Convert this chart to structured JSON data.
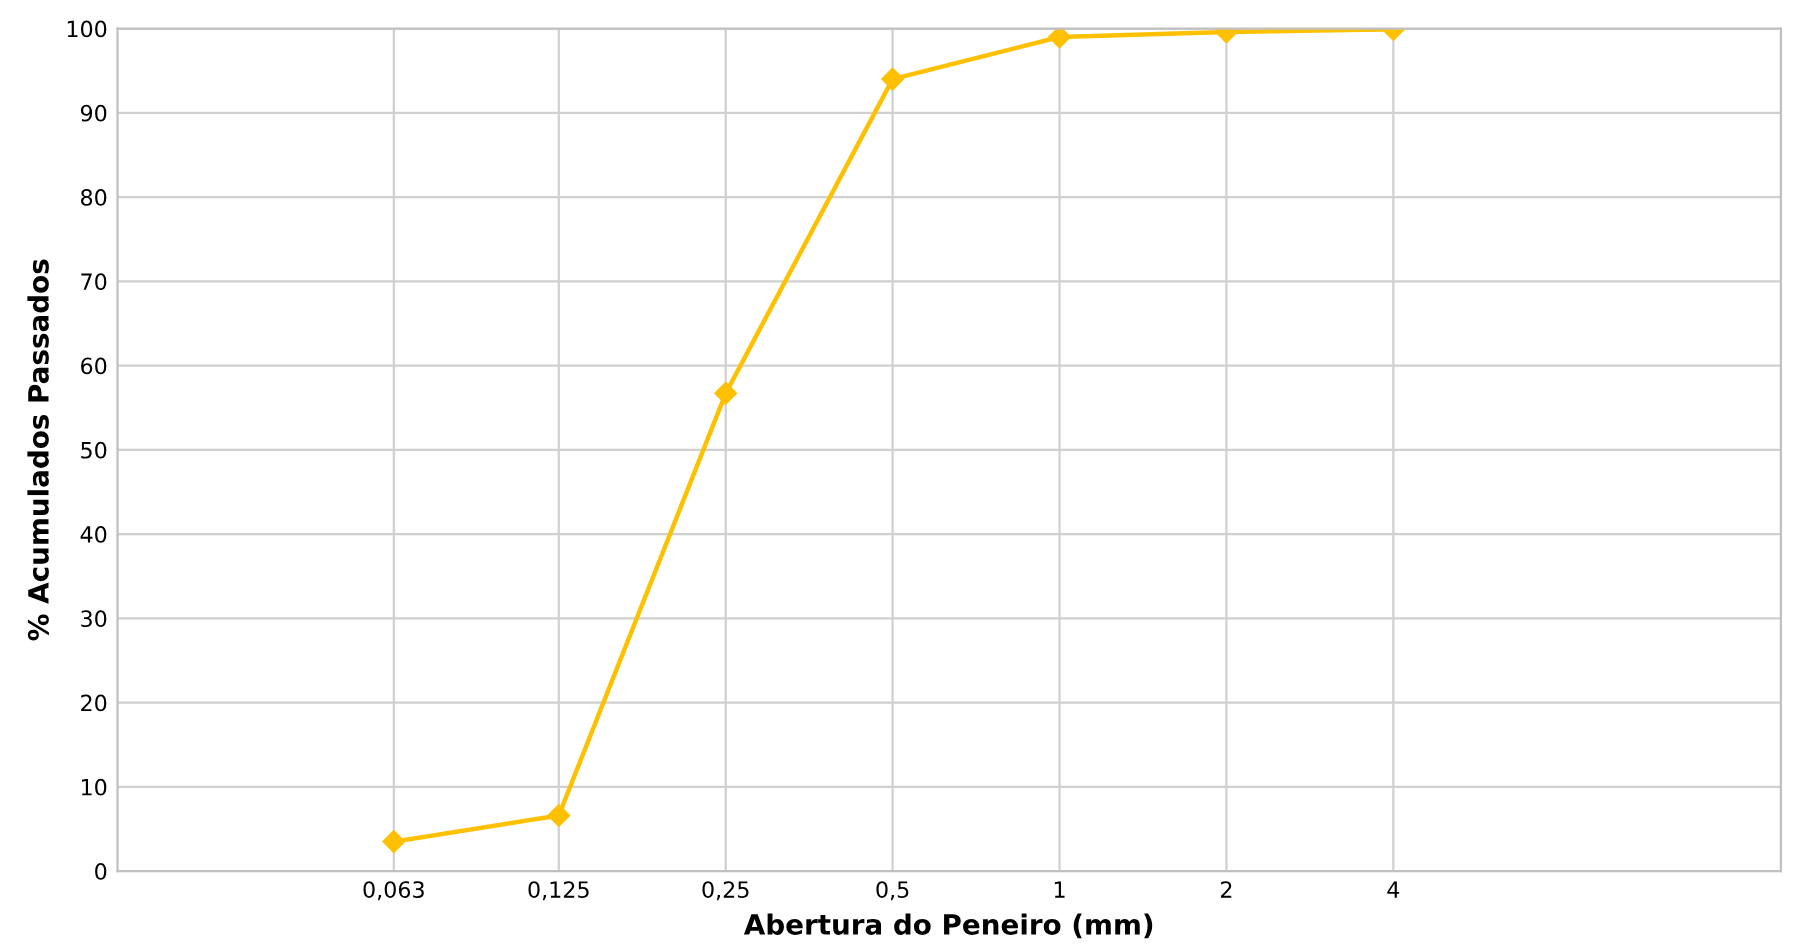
{
  "chart_data": {
    "type": "line",
    "xlabel": "Abertura do Peneiro (mm)",
    "ylabel": "% Acumulados Passados",
    "x": [
      0.063,
      0.125,
      0.25,
      0.5,
      1,
      2,
      4
    ],
    "series": [
      {
        "color": "#ffc000",
        "values": [
          3.5,
          6.6,
          56.7,
          94,
          99,
          99.6,
          99.9
        ]
      }
    ],
    "log": "x",
    "xlim": [
      0.02,
      20
    ],
    "xticks": [
      {
        "value": 0.063,
        "label": "0,063"
      },
      {
        "value": 0.125,
        "label": "0,125"
      },
      {
        "value": 0.25,
        "label": "0,25"
      },
      {
        "value": 0.5,
        "label": "0,5"
      },
      1,
      2,
      4
    ],
    "ylim": [
      0,
      100
    ],
    "yticks": [
      0,
      10,
      20,
      30,
      40,
      50,
      60,
      70,
      80,
      90,
      100
    ],
    "grid": true,
    "marker": "diamond",
    "line_style": "solid"
  }
}
